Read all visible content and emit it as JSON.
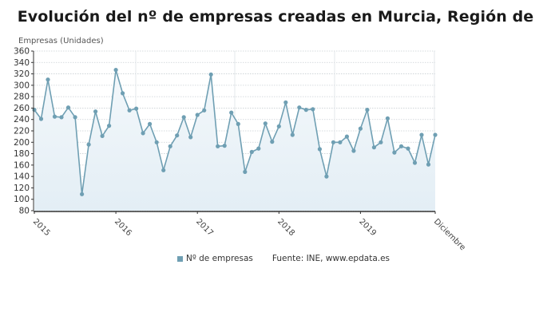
{
  "chart_data": {
    "type": "line",
    "title": "Evolución del nº de empresas creadas en Murcia, Región de",
    "ylabel": "Empresas (Unidades)",
    "xlabel": "",
    "ylim": [
      80,
      360
    ],
    "yticks": [
      80,
      100,
      120,
      140,
      160,
      180,
      200,
      220,
      240,
      260,
      280,
      300,
      320,
      340,
      360
    ],
    "xtick_labels": [
      "2015",
      "2016",
      "2017",
      "2018",
      "2019",
      "Diciembre"
    ],
    "grid": true,
    "legend_position": "bottom",
    "frequency": "monthly",
    "x_start": "2015-01",
    "x_end": "2019-12",
    "series": [
      {
        "name": "Nº de empresas",
        "color": "#6f9fb3",
        "values": [
          257,
          241,
          310,
          245,
          244,
          261,
          244,
          109,
          196,
          254,
          211,
          229,
          327,
          286,
          256,
          259,
          216,
          232,
          200,
          151,
          193,
          212,
          244,
          209,
          248,
          256,
          319,
          193,
          194,
          252,
          232,
          148,
          183,
          189,
          233,
          201,
          228,
          270,
          213,
          261,
          257,
          258,
          188,
          140,
          200,
          200,
          210,
          185,
          224,
          257,
          191,
          200,
          242,
          182,
          193,
          189,
          164,
          213,
          161,
          213
        ]
      }
    ]
  },
  "legend": {
    "series_label": "Nº de empresas",
    "source": "Fuente: INE, www.epdata.es"
  }
}
